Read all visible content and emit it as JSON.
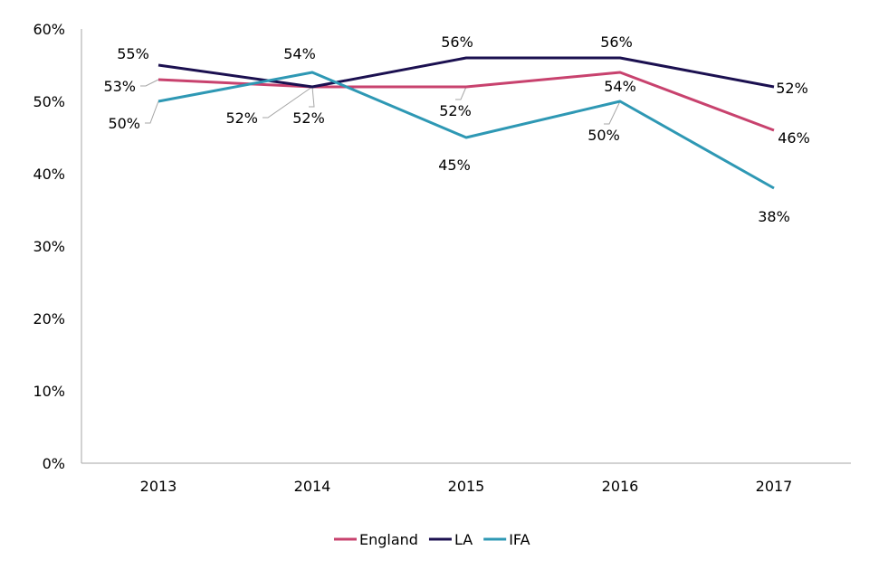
{
  "chart_data": {
    "type": "line",
    "title": "",
    "xlabel": "",
    "ylabel": "",
    "categories": [
      "2013",
      "2014",
      "2015",
      "2016",
      "2017"
    ],
    "ylim": [
      0,
      60
    ],
    "yticks": [
      0,
      10,
      20,
      30,
      40,
      50,
      60
    ],
    "ytick_labels": [
      "0%",
      "10%",
      "20%",
      "30%",
      "40%",
      "50%",
      "60%"
    ],
    "grid": false,
    "legend_position": "bottom",
    "series": [
      {
        "name": "England",
        "color": "#c8426e",
        "values": [
          53,
          52,
          52,
          54,
          46
        ],
        "labels": [
          "53%",
          "52%",
          "52%",
          "54%",
          "46%"
        ]
      },
      {
        "name": "LA",
        "color": "#1b1050",
        "values": [
          55,
          52,
          56,
          56,
          52
        ],
        "labels": [
          "55%",
          "52%",
          "56%",
          "56%",
          "52%"
        ]
      },
      {
        "name": "IFA",
        "color": "#2e98b4",
        "values": [
          50,
          54,
          45,
          50,
          38
        ],
        "labels": [
          "50%",
          "54%",
          "45%",
          "50%",
          "38%"
        ]
      }
    ]
  }
}
